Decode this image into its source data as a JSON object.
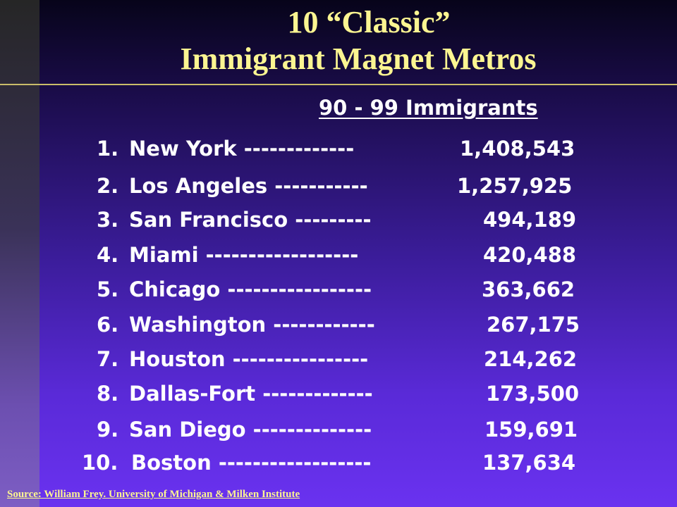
{
  "title": {
    "line1": "10 “Classic”",
    "line2": "Immigrant  Magnet Metros"
  },
  "column_header": "90 - 99 Immigrants",
  "rows": [
    {
      "rank": "1.",
      "city": "New York   -------------",
      "value": "1,408,543"
    },
    {
      "rank": "2.",
      "city": "Los Angeles  -----------",
      "value": "1,257,925"
    },
    {
      "rank": "3.",
      "city": "San Francisco  ---------",
      "value": "494,189"
    },
    {
      "rank": "4.",
      "city": "Miami  ------------------",
      "value": "420,488"
    },
    {
      "rank": "5.",
      "city": "Chicago -----------------",
      "value": "363,662"
    },
    {
      "rank": "6.",
      "city": "Washington  ------------",
      "value": "267,175"
    },
    {
      "rank": "7.",
      "city": "Houston  ----------------",
      "value": "214,262"
    },
    {
      "rank": "8.",
      "city": "Dallas-Fort  -------------",
      "value": "173,500"
    },
    {
      "rank": "9.",
      "city": "San Diego  --------------",
      "value": "159,691"
    },
    {
      "rank": "10.",
      "city": "Boston  ------------------",
      "value": "137,634"
    }
  ],
  "source": "Source: William Frey. University of Michigan & Milken Institute",
  "colors": {
    "title": "#fbf591",
    "text": "#ffffff",
    "background_top": "#07041a",
    "background_bottom": "#6a32f0"
  }
}
